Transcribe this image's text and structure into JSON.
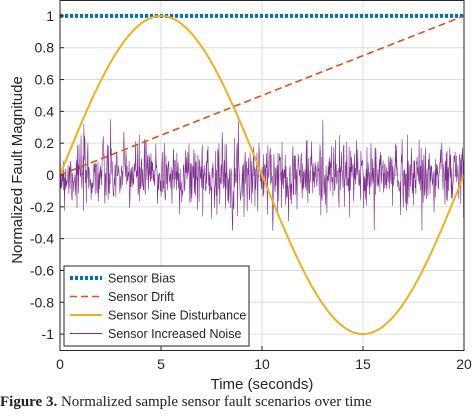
{
  "chart_data": {
    "type": "line",
    "xlabel": "Time (seconds)",
    "ylabel": "Normalized Fault Magnitude",
    "xlim": [
      0,
      20
    ],
    "ylim": [
      -1.1,
      1.1
    ],
    "x_ticks": [
      0,
      5,
      10,
      15,
      20
    ],
    "x_tick_labels": [
      "0",
      "5",
      "10",
      "15",
      "20"
    ],
    "y_ticks": [
      -1,
      -0.8,
      -0.6,
      -0.4,
      -0.2,
      0,
      0.2,
      0.4,
      0.6,
      0.8,
      1
    ],
    "y_tick_labels": [
      "-1",
      "-0.8",
      "-0.6",
      "-0.4",
      "-0.2",
      "0",
      "0.2",
      "0.4",
      "0.6",
      "0.8",
      "1"
    ],
    "grid": true,
    "legend_position": "bottom-left",
    "series": [
      {
        "name": "Sensor Bias",
        "color": "#0072BD",
        "style": "dotted",
        "x": [
          0,
          20
        ],
        "y": [
          1,
          1
        ]
      },
      {
        "name": "Sensor Drift",
        "color": "#D95319",
        "style": "dashed",
        "x": [
          0,
          20
        ],
        "y": [
          0,
          1
        ]
      },
      {
        "name": "Sensor Sine Disturbance",
        "color": "#EDB120",
        "style": "solid",
        "x": [
          0,
          2.5,
          5,
          7.5,
          10,
          12.5,
          15,
          17.5,
          20
        ],
        "y": [
          0,
          0.71,
          1,
          0.71,
          0,
          -0.71,
          -1,
          -0.71,
          0
        ]
      },
      {
        "name": "Sensor Increased Noise",
        "color": "#7E2F8E",
        "style": "solid",
        "x": [
          0,
          20
        ],
        "y_mean": 0,
        "y_min": -0.35,
        "y_max": 0.35,
        "points": 1000
      }
    ]
  },
  "caption": {
    "label": "Figure 3.",
    "text": "Normalized sample sensor fault scenarios over time"
  }
}
